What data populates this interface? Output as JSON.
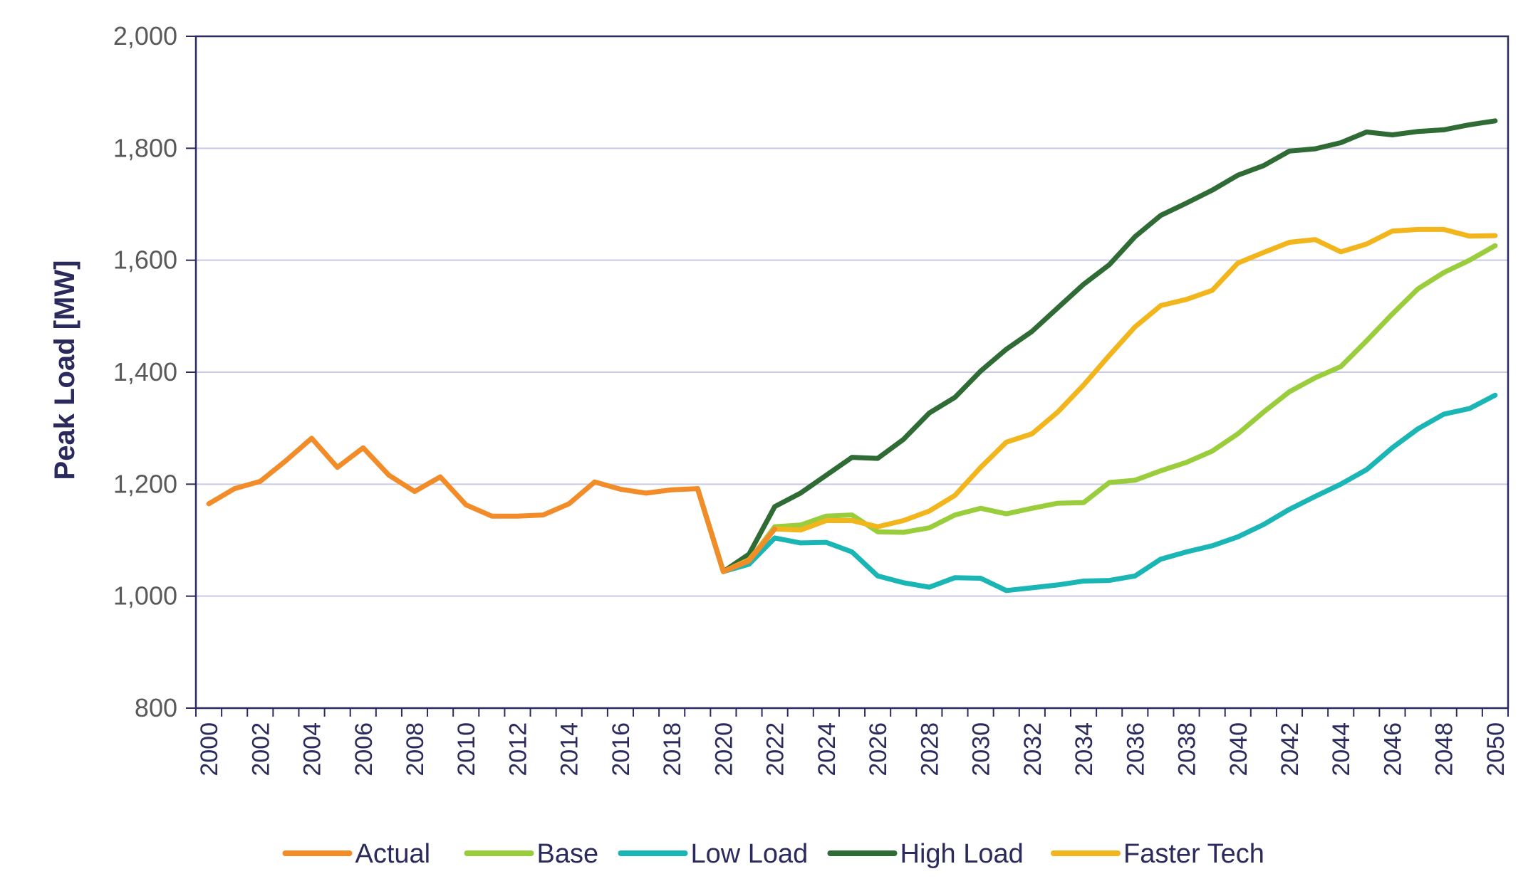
{
  "chart_data": {
    "type": "line",
    "title": "",
    "xlabel": "",
    "ylabel": "Peak Load [MW]",
    "ylim": [
      800,
      2000
    ],
    "xlim": [
      2000,
      2050
    ],
    "y_ticks": [
      "800",
      "1,000",
      "1,200",
      "1,400",
      "1,600",
      "1,800",
      "2,000"
    ],
    "y_tick_values": [
      800,
      1000,
      1200,
      1400,
      1600,
      1800,
      2000
    ],
    "x_ticks": [
      "2000",
      "2002",
      "2004",
      "2006",
      "2008",
      "2010",
      "2012",
      "2014",
      "2016",
      "2018",
      "2020",
      "2022",
      "2024",
      "2026",
      "2028",
      "2030",
      "2032",
      "2034",
      "2036",
      "2038",
      "2040",
      "2042",
      "2044",
      "2046",
      "2048",
      "2050"
    ],
    "grid": true,
    "legend_position": "bottom",
    "series": [
      {
        "name": "Actual",
        "color": "#f28c28",
        "x": [
          2000,
          2001,
          2002,
          2003,
          2004,
          2005,
          2006,
          2007,
          2008,
          2009,
          2010,
          2011,
          2012,
          2013,
          2014,
          2015,
          2016,
          2017,
          2018,
          2019,
          2020,
          2021,
          2022
        ],
        "values": [
          1165,
          1192,
          1205,
          1242,
          1282,
          1230,
          1265,
          1216,
          1187,
          1213,
          1163,
          1143,
          1143,
          1145,
          1165,
          1204,
          1191,
          1184,
          1190,
          1192,
          1044,
          1063,
          1120
        ]
      },
      {
        "name": "Base",
        "color": "#9acd3c",
        "x": [
          2019,
          2020,
          2021,
          2022,
          2023,
          2024,
          2025,
          2026,
          2027,
          2028,
          2029,
          2030,
          2031,
          2032,
          2033,
          2034,
          2035,
          2036,
          2037,
          2038,
          2039,
          2040,
          2041,
          2042,
          2043,
          2044,
          2045,
          2046,
          2047,
          2048,
          2049,
          2050
        ],
        "values": [
          1192,
          1044,
          1063,
          1124,
          1127,
          1143,
          1145,
          1115,
          1114,
          1122,
          1145,
          1157,
          1147,
          1157,
          1166,
          1167,
          1203,
          1207,
          1224,
          1239,
          1259,
          1290,
          1329,
          1365,
          1390,
          1410,
          1456,
          1504,
          1549,
          1578,
          1600,
          1626
        ]
      },
      {
        "name": "Low Load",
        "color": "#1ab5b5",
        "x": [
          2019,
          2020,
          2021,
          2022,
          2023,
          2024,
          2025,
          2026,
          2027,
          2028,
          2029,
          2030,
          2031,
          2032,
          2033,
          2034,
          2035,
          2036,
          2037,
          2038,
          2039,
          2040,
          2041,
          2042,
          2043,
          2044,
          2045,
          2046,
          2047,
          2048,
          2049,
          2050
        ],
        "values": [
          1192,
          1044,
          1057,
          1104,
          1095,
          1096,
          1079,
          1036,
          1024,
          1016,
          1033,
          1032,
          1010,
          1015,
          1020,
          1027,
          1028,
          1036,
          1066,
          1079,
          1090,
          1106,
          1128,
          1155,
          1178,
          1200,
          1226,
          1265,
          1299,
          1325,
          1335,
          1359
        ]
      },
      {
        "name": "High Load",
        "color": "#2f6b35",
        "x": [
          2019,
          2020,
          2021,
          2022,
          2023,
          2024,
          2025,
          2026,
          2027,
          2028,
          2029,
          2030,
          2031,
          2032,
          2033,
          2034,
          2035,
          2036,
          2037,
          2038,
          2039,
          2040,
          2041,
          2042,
          2043,
          2044,
          2045,
          2046,
          2047,
          2048,
          2049,
          2050
        ],
        "values": [
          1192,
          1044,
          1075,
          1160,
          1184,
          1216,
          1248,
          1246,
          1280,
          1327,
          1355,
          1402,
          1441,
          1473,
          1515,
          1557,
          1592,
          1642,
          1680,
          1702,
          1725,
          1752,
          1769,
          1795,
          1799,
          1810,
          1829,
          1824,
          1830,
          1833,
          1842,
          1849
        ]
      },
      {
        "name": "Faster Tech",
        "color": "#f2b51b",
        "x": [
          2019,
          2020,
          2021,
          2022,
          2023,
          2024,
          2025,
          2026,
          2027,
          2028,
          2029,
          2030,
          2031,
          2032,
          2033,
          2034,
          2035,
          2036,
          2037,
          2038,
          2039,
          2040,
          2041,
          2042,
          2043,
          2044,
          2045,
          2046,
          2047,
          2048,
          2049,
          2050
        ],
        "values": [
          1192,
          1044,
          1065,
          1120,
          1118,
          1135,
          1135,
          1124,
          1135,
          1152,
          1180,
          1230,
          1275,
          1290,
          1329,
          1377,
          1430,
          1481,
          1519,
          1530,
          1546,
          1595,
          1614,
          1632,
          1637,
          1615,
          1629,
          1652,
          1655,
          1655,
          1643,
          1644
        ]
      }
    ]
  }
}
